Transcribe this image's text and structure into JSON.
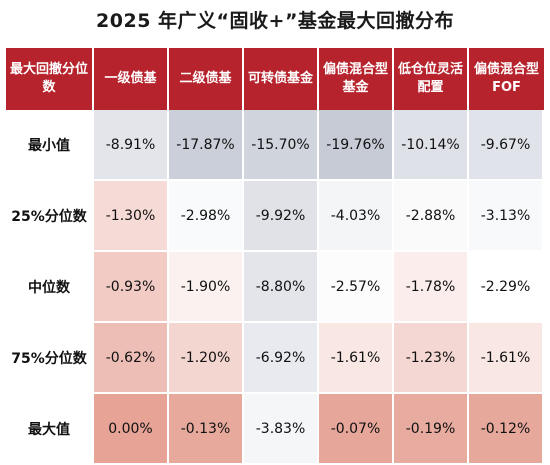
{
  "title": "2025 年广义“固收+”基金最大回撤分布",
  "header_corner": "最大回撤分位数",
  "chart_data": {
    "type": "heatmap",
    "title": "2025 年广义“固收+”基金最大回撤分布",
    "columns": [
      "一级债基",
      "二级债基",
      "可转债基金",
      "偏债混合型基金",
      "低仓位灵活配置",
      "偏债混合型FOF"
    ],
    "rows": [
      "最小值",
      "25%分位数",
      "中位数",
      "75%分位数",
      "最大值"
    ],
    "values": [
      [
        -8.91,
        -17.87,
        -15.7,
        -19.76,
        -10.14,
        -9.67
      ],
      [
        -1.3,
        -2.98,
        -9.92,
        -4.03,
        -2.88,
        -3.13
      ],
      [
        -0.93,
        -1.9,
        -8.8,
        -2.57,
        -1.78,
        -2.29
      ],
      [
        -0.62,
        -1.2,
        -6.92,
        -1.61,
        -1.23,
        -1.61
      ],
      [
        0.0,
        -0.13,
        -3.83,
        -0.07,
        -0.19,
        -0.12
      ]
    ],
    "labels": [
      [
        "-8.91%",
        "-17.87%",
        "-15.70%",
        "-19.76%",
        "-10.14%",
        "-9.67%"
      ],
      [
        "-1.30%",
        "-2.98%",
        "-9.92%",
        "-4.03%",
        "-2.88%",
        "-3.13%"
      ],
      [
        "-0.93%",
        "-1.90%",
        "-8.80%",
        "-2.57%",
        "-1.78%",
        "-2.29%"
      ],
      [
        "-0.62%",
        "-1.20%",
        "-6.92%",
        "-1.61%",
        "-1.23%",
        "-1.61%"
      ],
      [
        "0.00%",
        "-0.13%",
        "-3.83%",
        "-0.07%",
        "-0.19%",
        "-0.12%"
      ]
    ],
    "colors": {
      "header_bg": "#b7232c",
      "header_text": "#ffffff",
      "low": "#c7cbd6",
      "mid": "#ffffff",
      "high": "#e6a396"
    }
  }
}
